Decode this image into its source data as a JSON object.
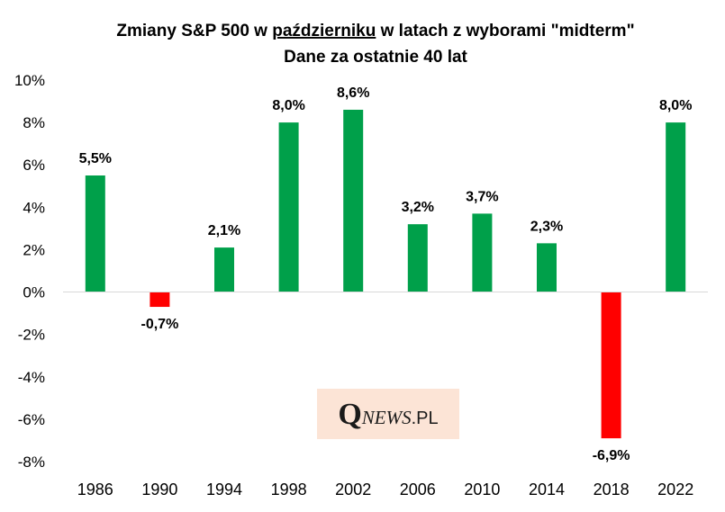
{
  "chart_data": {
    "type": "bar",
    "title": "Zmiany S&P 500 w październiku w latach z wyborami \"midterm\"",
    "title_prefix": "Zmiany S&P 500 w ",
    "title_underlined": "październiku",
    "title_suffix": " w latach z wyborami \"midterm\"",
    "subtitle": "Dane za ostatnie 40 lat",
    "categories": [
      "1986",
      "1990",
      "1994",
      "1998",
      "2002",
      "2006",
      "2010",
      "2014",
      "2018",
      "2022"
    ],
    "values": [
      5.5,
      -0.7,
      2.1,
      8.0,
      8.6,
      3.2,
      3.7,
      2.3,
      -6.9,
      8.0
    ],
    "data_labels": [
      "5,5%",
      "-0,7%",
      "2,1%",
      "8,0%",
      "8,6%",
      "3,2%",
      "3,7%",
      "2,3%",
      "-6,9%",
      "8,0%"
    ],
    "ylim": [
      -8,
      10
    ],
    "yticks": [
      10,
      8,
      6,
      4,
      2,
      0,
      -2,
      -4,
      -6,
      -8
    ],
    "ytick_labels": [
      "10%",
      "8%",
      "6%",
      "4%",
      "2%",
      "0%",
      "-2%",
      "-4%",
      "-6%",
      "-8%"
    ],
    "xlabel": "",
    "ylabel": "",
    "grid": false,
    "colors": {
      "positive": "#00A04A",
      "negative": "#FF0000",
      "axis": "#D9D9D9"
    }
  },
  "watermark": {
    "initial": "Q",
    "rest": "NEWS",
    "suffix": ".PL",
    "background": "#FCE4D6"
  }
}
